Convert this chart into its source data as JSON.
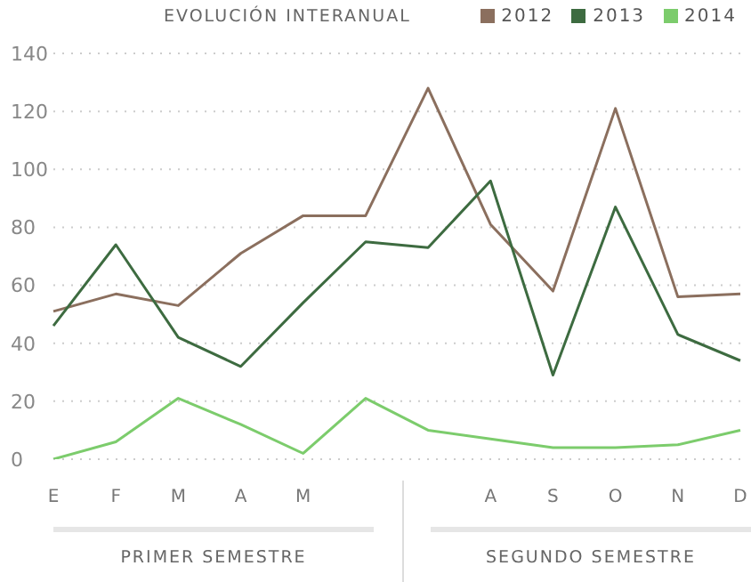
{
  "chart_data": {
    "type": "line",
    "title": "EVOLUCIÓN INTERANUAL",
    "categories": [
      "E",
      "F",
      "M",
      "A",
      "M",
      null,
      null,
      "A",
      "S",
      "O",
      "N",
      "D"
    ],
    "series": [
      {
        "name": "2012",
        "color": "#8b6f5e",
        "values": [
          51,
          57,
          53,
          71,
          84,
          84,
          128,
          81,
          58,
          121,
          56,
          57
        ]
      },
      {
        "name": "2013",
        "color": "#3d6b40",
        "values": [
          46,
          74,
          42,
          32,
          54,
          75,
          73,
          96,
          29,
          87,
          43,
          34
        ]
      },
      {
        "name": "2014",
        "color": "#7ccc6c",
        "values": [
          0,
          6,
          21,
          12,
          2,
          21,
          10,
          7,
          4,
          4,
          5,
          10
        ]
      }
    ],
    "ylim": [
      0,
      140
    ],
    "yticks": [
      0,
      20,
      40,
      60,
      80,
      100,
      120,
      140
    ],
    "grid": "y",
    "legend": "top right",
    "marker": "none",
    "line_style": "solid",
    "annotations": [
      "PRIMER SEMESTRE",
      "SEGUNDO SEMESTRE"
    ]
  }
}
